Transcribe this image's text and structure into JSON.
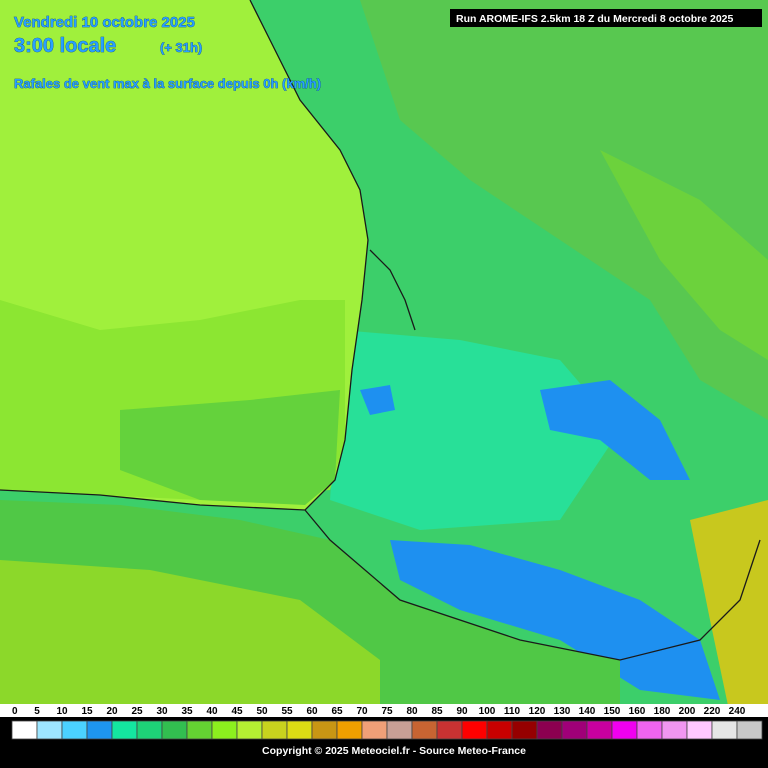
{
  "header": {
    "date": "Vendredi 10 octobre 2025",
    "time": "3:00 locale",
    "lead": "(+ 31h)",
    "title": "Rafales de vent max à la surface depuis 0h (km/h)",
    "run": "Run AROME-IFS 2.5km 18 Z du Mercredi 8 octobre 2025"
  },
  "legend": {
    "values": [
      0,
      5,
      10,
      15,
      20,
      25,
      30,
      35,
      40,
      45,
      50,
      55,
      60,
      65,
      70,
      75,
      80,
      85,
      90,
      100,
      110,
      120,
      130,
      140,
      150,
      160,
      180,
      200,
      220,
      240
    ],
    "colors": [
      "#ffffff",
      "#9ee6ff",
      "#4bd2ff",
      "#1e96f0",
      "#14e6a0",
      "#1ed278",
      "#32be50",
      "#64d232",
      "#8cf01e",
      "#b4f032",
      "#c8d21e",
      "#dcdc14",
      "#c89614",
      "#f0a000",
      "#f0a078",
      "#c8a096",
      "#c86432",
      "#c83232",
      "#ff0000",
      "#c80000",
      "#960000",
      "#8c0050",
      "#a00078",
      "#c800a0",
      "#f000f0",
      "#f064f0",
      "#f096f0",
      "#ffc8ff",
      "#e6e6e6",
      "#c8c8c8"
    ]
  },
  "footer": {
    "copyright": "Copyright © 2025 Meteociel.fr - Source Meteo-France"
  }
}
